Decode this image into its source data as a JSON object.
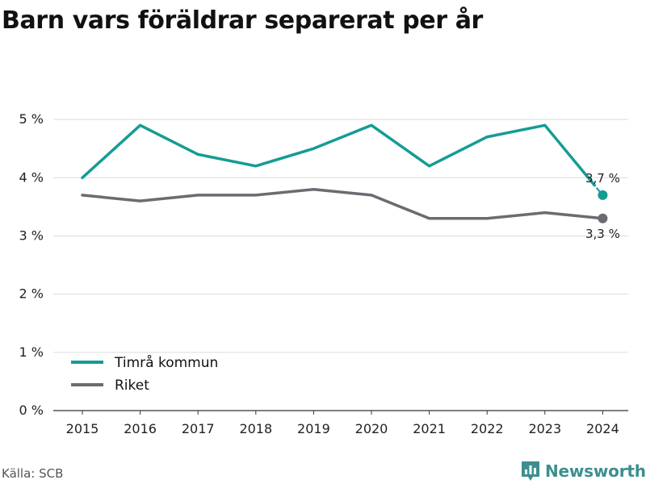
{
  "chart_data": {
    "type": "line",
    "title": "Barn vars föräldrar separerat per år",
    "x": [
      "2015",
      "2016",
      "2017",
      "2018",
      "2019",
      "2020",
      "2021",
      "2022",
      "2023",
      "2024"
    ],
    "y_ticks": [
      0,
      1,
      2,
      3,
      4,
      5
    ],
    "y_tick_suffix": " %",
    "ylim": [
      0,
      5.5
    ],
    "grid": true,
    "legend_position": "bottom-left",
    "series": [
      {
        "name": "Timrå kommun",
        "color": "#159c94",
        "values": [
          4.0,
          4.9,
          4.4,
          4.2,
          4.5,
          4.9,
          4.2,
          4.7,
          4.9,
          3.7
        ],
        "end_label": "3,7 %"
      },
      {
        "name": "Riket",
        "color": "#6b6b72",
        "values": [
          3.7,
          3.6,
          3.7,
          3.7,
          3.8,
          3.7,
          3.3,
          3.3,
          3.4,
          3.3
        ],
        "end_label": "3,3 %"
      }
    ]
  },
  "source": "Källa: SCB",
  "brand": {
    "name": "Newsworthy",
    "icon": "newsworthy-bar-chart-icon"
  }
}
